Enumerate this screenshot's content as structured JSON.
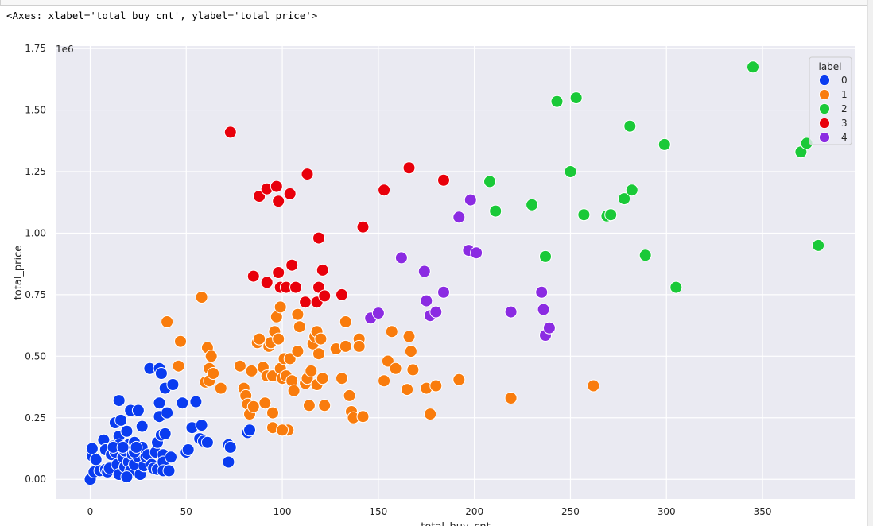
{
  "output_text": "<Axes: xlabel='total_buy_cnt', ylabel='total_price'>",
  "chart_data": {
    "type": "scatter",
    "xlabel": "total_buy_cnt",
    "ylabel": "total_price",
    "y_offset_label": "1e6",
    "xlim": [
      -18,
      398
    ],
    "ylim": [
      -80000,
      1760000
    ],
    "xticks": [
      0,
      50,
      100,
      150,
      200,
      250,
      300,
      350
    ],
    "yticks": [
      0,
      250000,
      500000,
      750000,
      1000000,
      1250000,
      1500000,
      1750000
    ],
    "ytick_labels": [
      "0.00",
      "0.25",
      "0.50",
      "0.75",
      "1.00",
      "1.25",
      "1.50",
      "1.75"
    ],
    "grid": true,
    "background": "#eaeaf2",
    "legend": {
      "title": "label",
      "placement": "top-right",
      "entries": [
        "0",
        "1",
        "2",
        "3",
        "4"
      ]
    },
    "series": [
      {
        "name": "0",
        "color": "#0a3cf0",
        "points": [
          [
            0,
            0
          ],
          [
            1,
            95000
          ],
          [
            1,
            125000
          ],
          [
            2,
            30000
          ],
          [
            5,
            35000
          ],
          [
            7,
            160000
          ],
          [
            8,
            120000
          ],
          [
            8,
            40000
          ],
          [
            9,
            30000
          ],
          [
            10,
            45000
          ],
          [
            11,
            100000
          ],
          [
            12,
            135000
          ],
          [
            13,
            110000
          ],
          [
            13,
            230000
          ],
          [
            14,
            60000
          ],
          [
            15,
            175000
          ],
          [
            15,
            140000
          ],
          [
            15,
            20000
          ],
          [
            15,
            320000
          ],
          [
            16,
            240000
          ],
          [
            17,
            90000
          ],
          [
            18,
            115000
          ],
          [
            18,
            50000
          ],
          [
            19,
            195000
          ],
          [
            20,
            140000
          ],
          [
            20,
            70000
          ],
          [
            21,
            280000
          ],
          [
            21,
            35000
          ],
          [
            22,
            100000
          ],
          [
            23,
            150000
          ],
          [
            23,
            60000
          ],
          [
            24,
            120000
          ],
          [
            25,
            90000
          ],
          [
            25,
            280000
          ],
          [
            26,
            20000
          ],
          [
            27,
            215000
          ],
          [
            27,
            130000
          ],
          [
            28,
            55000
          ],
          [
            29,
            90000
          ],
          [
            30,
            100000
          ],
          [
            31,
            450000
          ],
          [
            32,
            60000
          ],
          [
            33,
            45000
          ],
          [
            34,
            110000
          ],
          [
            35,
            150000
          ],
          [
            35,
            40000
          ],
          [
            36,
            450000
          ],
          [
            36,
            310000
          ],
          [
            36,
            255000
          ],
          [
            37,
            430000
          ],
          [
            37,
            180000
          ],
          [
            38,
            100000
          ],
          [
            38,
            70000
          ],
          [
            38,
            35000
          ],
          [
            39,
            370000
          ],
          [
            39,
            185000
          ],
          [
            40,
            270000
          ],
          [
            41,
            35000
          ],
          [
            42,
            90000
          ],
          [
            43,
            385000
          ],
          [
            48,
            310000
          ],
          [
            50,
            110000
          ],
          [
            51,
            120000
          ],
          [
            53,
            210000
          ],
          [
            55,
            315000
          ],
          [
            57,
            165000
          ],
          [
            58,
            220000
          ],
          [
            59,
            155000
          ],
          [
            61,
            150000
          ],
          [
            72,
            140000
          ],
          [
            72,
            70000
          ],
          [
            73,
            130000
          ],
          [
            82,
            190000
          ],
          [
            83,
            200000
          ],
          [
            12,
            130000
          ],
          [
            3,
            80000
          ],
          [
            23,
            110000
          ],
          [
            17,
            130000
          ],
          [
            19,
            10000
          ],
          [
            24,
            130000
          ]
        ]
      },
      {
        "name": "1",
        "color": "#f97c0d",
        "points": [
          [
            40,
            640000
          ],
          [
            46,
            460000
          ],
          [
            47,
            560000
          ],
          [
            58,
            740000
          ],
          [
            60,
            395000
          ],
          [
            61,
            535000
          ],
          [
            62,
            450000
          ],
          [
            62,
            400000
          ],
          [
            63,
            500000
          ],
          [
            64,
            430000
          ],
          [
            68,
            370000
          ],
          [
            78,
            460000
          ],
          [
            80,
            370000
          ],
          [
            81,
            340000
          ],
          [
            82,
            305000
          ],
          [
            83,
            265000
          ],
          [
            84,
            440000
          ],
          [
            85,
            295000
          ],
          [
            87,
            555000
          ],
          [
            88,
            570000
          ],
          [
            90,
            455000
          ],
          [
            91,
            310000
          ],
          [
            92,
            420000
          ],
          [
            93,
            540000
          ],
          [
            94,
            555000
          ],
          [
            95,
            420000
          ],
          [
            95,
            270000
          ],
          [
            95,
            210000
          ],
          [
            96,
            600000
          ],
          [
            97,
            660000
          ],
          [
            98,
            570000
          ],
          [
            99,
            700000
          ],
          [
            99,
            450000
          ],
          [
            100,
            410000
          ],
          [
            101,
            490000
          ],
          [
            102,
            420000
          ],
          [
            103,
            200000
          ],
          [
            104,
            490000
          ],
          [
            105,
            400000
          ],
          [
            106,
            360000
          ],
          [
            108,
            520000
          ],
          [
            108,
            670000
          ],
          [
            109,
            620000
          ],
          [
            112,
            390000
          ],
          [
            113,
            410000
          ],
          [
            114,
            300000
          ],
          [
            115,
            440000
          ],
          [
            116,
            550000
          ],
          [
            117,
            580000
          ],
          [
            118,
            600000
          ],
          [
            118,
            385000
          ],
          [
            119,
            510000
          ],
          [
            120,
            570000
          ],
          [
            121,
            410000
          ],
          [
            122,
            300000
          ],
          [
            128,
            530000
          ],
          [
            131,
            410000
          ],
          [
            133,
            640000
          ],
          [
            133,
            540000
          ],
          [
            135,
            340000
          ],
          [
            136,
            275000
          ],
          [
            137,
            250000
          ],
          [
            140,
            570000
          ],
          [
            140,
            540000
          ],
          [
            142,
            255000
          ],
          [
            153,
            400000
          ],
          [
            155,
            480000
          ],
          [
            157,
            600000
          ],
          [
            159,
            450000
          ],
          [
            165,
            365000
          ],
          [
            166,
            580000
          ],
          [
            167,
            520000
          ],
          [
            168,
            445000
          ],
          [
            175,
            370000
          ],
          [
            177,
            265000
          ],
          [
            180,
            380000
          ],
          [
            192,
            405000
          ],
          [
            219,
            330000
          ],
          [
            262,
            380000
          ],
          [
            100,
            200000
          ]
        ]
      },
      {
        "name": "2",
        "color": "#1ac938",
        "points": [
          [
            208,
            1210000
          ],
          [
            211,
            1090000
          ],
          [
            230,
            1115000
          ],
          [
            237,
            905000
          ],
          [
            243,
            1535000
          ],
          [
            250,
            1250000
          ],
          [
            253,
            1550000
          ],
          [
            257,
            1075000
          ],
          [
            269,
            1070000
          ],
          [
            271,
            1075000
          ],
          [
            278,
            1140000
          ],
          [
            281,
            1435000
          ],
          [
            282,
            1175000
          ],
          [
            289,
            910000
          ],
          [
            299,
            1360000
          ],
          [
            305,
            780000
          ],
          [
            345,
            1675000
          ],
          [
            370,
            1330000
          ],
          [
            373,
            1365000
          ],
          [
            379,
            950000
          ]
        ]
      },
      {
        "name": "3",
        "color": "#e8000b",
        "points": [
          [
            73,
            1410000
          ],
          [
            85,
            825000
          ],
          [
            88,
            1150000
          ],
          [
            92,
            800000
          ],
          [
            92,
            1180000
          ],
          [
            97,
            1190000
          ],
          [
            98,
            1130000
          ],
          [
            98,
            840000
          ],
          [
            99,
            780000
          ],
          [
            102,
            780000
          ],
          [
            104,
            1160000
          ],
          [
            105,
            870000
          ],
          [
            107,
            780000
          ],
          [
            112,
            720000
          ],
          [
            113,
            1240000
          ],
          [
            118,
            720000
          ],
          [
            119,
            980000
          ],
          [
            119,
            780000
          ],
          [
            121,
            850000
          ],
          [
            122,
            745000
          ],
          [
            131,
            750000
          ],
          [
            142,
            1025000
          ],
          [
            153,
            1175000
          ],
          [
            166,
            1265000
          ],
          [
            184,
            1215000
          ]
        ]
      },
      {
        "name": "4",
        "color": "#8b2be2",
        "points": [
          [
            146,
            655000
          ],
          [
            150,
            675000
          ],
          [
            162,
            900000
          ],
          [
            174,
            845000
          ],
          [
            175,
            725000
          ],
          [
            177,
            665000
          ],
          [
            180,
            680000
          ],
          [
            184,
            760000
          ],
          [
            192,
            1065000
          ],
          [
            197,
            930000
          ],
          [
            198,
            1135000
          ],
          [
            201,
            920000
          ],
          [
            219,
            680000
          ],
          [
            235,
            760000
          ],
          [
            236,
            690000
          ],
          [
            237,
            585000
          ],
          [
            239,
            615000
          ]
        ]
      }
    ]
  }
}
